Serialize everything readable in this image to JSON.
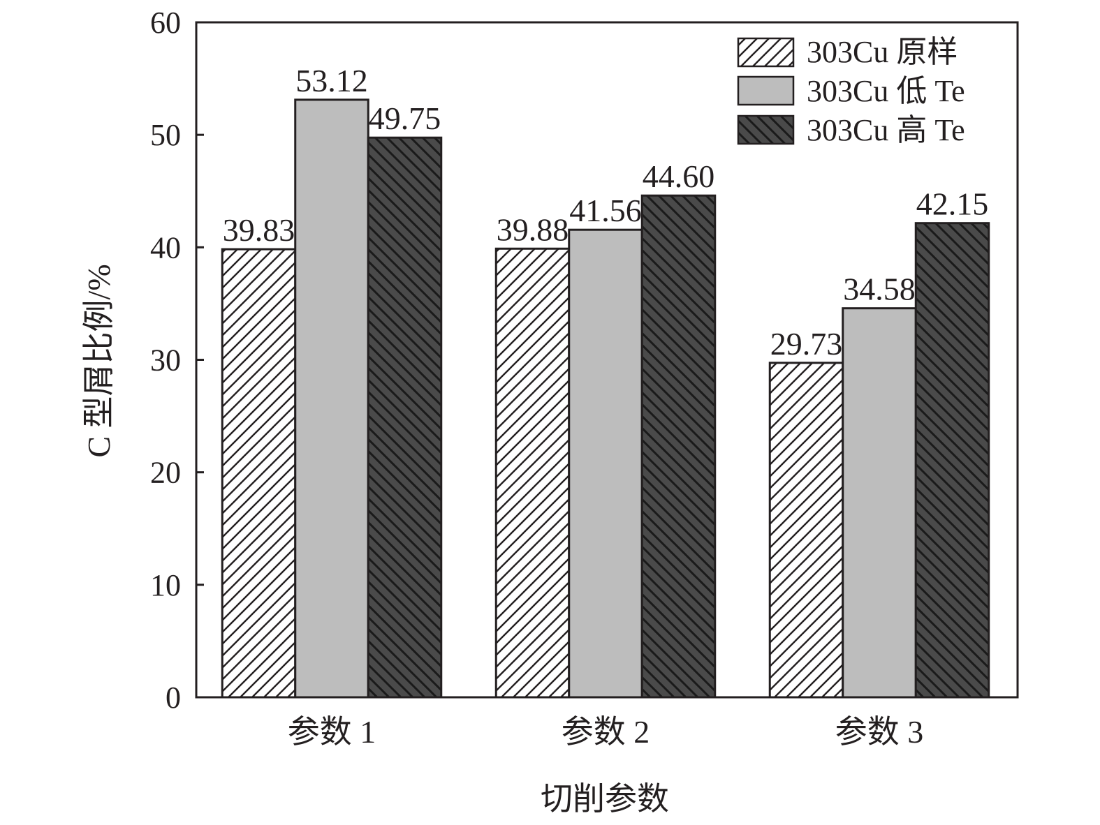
{
  "chart_data": {
    "type": "bar",
    "title": "",
    "xlabel": "切削参数",
    "ylabel": "C 型屑比例/%",
    "ylim": [
      0,
      60
    ],
    "yticks": [
      0,
      10,
      20,
      30,
      40,
      50,
      60
    ],
    "categories": [
      "参数 1",
      "参数 2",
      "参数 3"
    ],
    "series": [
      {
        "name": "303Cu 原样",
        "values": [
          39.83,
          39.88,
          29.73
        ],
        "labels": [
          "39.83",
          "39.88",
          "29.73"
        ],
        "fill": "#ffffff",
        "pattern": "diagonal-forward"
      },
      {
        "name": "303Cu 低 Te",
        "values": [
          53.12,
          41.56,
          34.58
        ],
        "labels": [
          "53.12",
          "41.56",
          "34.58"
        ],
        "fill": "#bdbdbd",
        "pattern": "none"
      },
      {
        "name": "303Cu 高 Te",
        "values": [
          49.75,
          44.6,
          42.15
        ],
        "labels": [
          "49.75",
          "44.60",
          "42.15"
        ],
        "fill": "#4a4a4a",
        "pattern": "diagonal-backward"
      }
    ],
    "legend_position": "top-right",
    "grid": false,
    "colors": {
      "axis": "#231f20",
      "text": "#231f20"
    }
  }
}
